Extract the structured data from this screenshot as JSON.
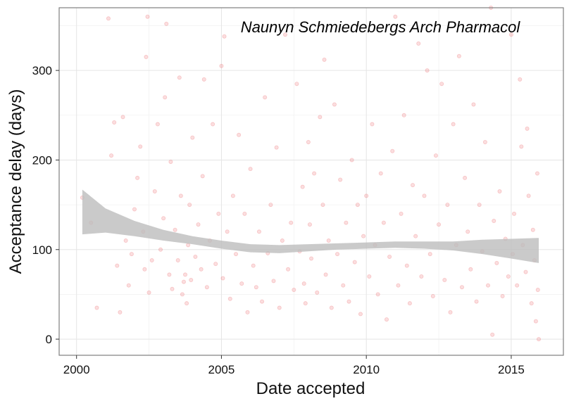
{
  "chart_data": {
    "type": "scatter",
    "title": "",
    "annotation": "Naunyn Schmiedebergs Arch Pharmacol",
    "xlabel": "Date accepted",
    "ylabel": "Acceptance delay (days)",
    "x_ticks": [
      2000,
      2005,
      2010,
      2015
    ],
    "y_ticks": [
      0,
      100,
      200,
      300
    ],
    "xlim": [
      1999.4,
      2016.8
    ],
    "ylim": [
      -18,
      370
    ],
    "grid": true,
    "point_color": "#e8484c",
    "point_alpha": 0.18,
    "smooth_color": "#bdbdbd",
    "smooth_band": {
      "x": [
        2000.2,
        2001.0,
        2002.0,
        2003.0,
        2004.0,
        2005.0,
        2006.0,
        2007.0,
        2008.0,
        2009.0,
        2010.0,
        2011.0,
        2012.0,
        2013.0,
        2014.0,
        2015.0,
        2015.95
      ],
      "lower": [
        117,
        119,
        115,
        110,
        106,
        101,
        97,
        96,
        98,
        100,
        101,
        102,
        101,
        99,
        95,
        90,
        85
      ],
      "upper": [
        167,
        146,
        132,
        122,
        115,
        110,
        106,
        105,
        106,
        107,
        108,
        109,
        109,
        109,
        111,
        112,
        113
      ]
    },
    "points": [
      [
        2000.2,
        158
      ],
      [
        2000.5,
        130
      ],
      [
        2000.7,
        35
      ],
      [
        2001.1,
        358
      ],
      [
        2001.2,
        205
      ],
      [
        2001.3,
        242
      ],
      [
        2001.4,
        82
      ],
      [
        2001.5,
        30
      ],
      [
        2001.6,
        248
      ],
      [
        2001.7,
        110
      ],
      [
        2001.8,
        60
      ],
      [
        2001.9,
        95
      ],
      [
        2002.0,
        145
      ],
      [
        2002.1,
        180
      ],
      [
        2002.2,
        215
      ],
      [
        2002.3,
        120
      ],
      [
        2002.35,
        78
      ],
      [
        2002.4,
        315
      ],
      [
        2002.45,
        360
      ],
      [
        2002.5,
        52
      ],
      [
        2002.6,
        88
      ],
      [
        2002.7,
        165
      ],
      [
        2002.8,
        240
      ],
      [
        2002.9,
        100
      ],
      [
        2003.0,
        135
      ],
      [
        2003.05,
        270
      ],
      [
        2003.1,
        352
      ],
      [
        2003.2,
        72
      ],
      [
        2003.25,
        198
      ],
      [
        2003.3,
        56
      ],
      [
        2003.4,
        122
      ],
      [
        2003.5,
        88
      ],
      [
        2003.55,
        292
      ],
      [
        2003.6,
        160
      ],
      [
        2003.65,
        50
      ],
      [
        2003.7,
        64
      ],
      [
        2003.75,
        72
      ],
      [
        2003.8,
        40
      ],
      [
        2003.85,
        105
      ],
      [
        2003.9,
        150
      ],
      [
        2003.95,
        66
      ],
      [
        2004.0,
        225
      ],
      [
        2004.1,
        92
      ],
      [
        2004.2,
        128
      ],
      [
        2004.3,
        78
      ],
      [
        2004.35,
        182
      ],
      [
        2004.4,
        290
      ],
      [
        2004.5,
        58
      ],
      [
        2004.6,
        110
      ],
      [
        2004.7,
        240
      ],
      [
        2004.8,
        84
      ],
      [
        2004.9,
        140
      ],
      [
        2005.0,
        305
      ],
      [
        2005.05,
        68
      ],
      [
        2005.1,
        338
      ],
      [
        2005.2,
        120
      ],
      [
        2005.3,
        45
      ],
      [
        2005.4,
        160
      ],
      [
        2005.5,
        95
      ],
      [
        2005.6,
        228
      ],
      [
        2005.7,
        62
      ],
      [
        2005.8,
        140
      ],
      [
        2005.9,
        30
      ],
      [
        2006.0,
        190
      ],
      [
        2006.1,
        82
      ],
      [
        2006.2,
        58
      ],
      [
        2006.3,
        120
      ],
      [
        2006.4,
        42
      ],
      [
        2006.5,
        270
      ],
      [
        2006.6,
        96
      ],
      [
        2006.7,
        150
      ],
      [
        2006.8,
        65
      ],
      [
        2006.9,
        214
      ],
      [
        2007.0,
        35
      ],
      [
        2007.1,
        110
      ],
      [
        2007.2,
        340
      ],
      [
        2007.3,
        78
      ],
      [
        2007.4,
        130
      ],
      [
        2007.5,
        55
      ],
      [
        2007.6,
        285
      ],
      [
        2007.7,
        98
      ],
      [
        2007.8,
        170
      ],
      [
        2007.85,
        62
      ],
      [
        2007.9,
        40
      ],
      [
        2008.0,
        220
      ],
      [
        2008.05,
        128
      ],
      [
        2008.1,
        90
      ],
      [
        2008.2,
        185
      ],
      [
        2008.3,
        52
      ],
      [
        2008.4,
        248
      ],
      [
        2008.5,
        150
      ],
      [
        2008.55,
        312
      ],
      [
        2008.6,
        72
      ],
      [
        2008.7,
        110
      ],
      [
        2008.8,
        35
      ],
      [
        2008.9,
        262
      ],
      [
        2009.0,
        95
      ],
      [
        2009.1,
        178
      ],
      [
        2009.2,
        60
      ],
      [
        2009.3,
        130
      ],
      [
        2009.4,
        42
      ],
      [
        2009.5,
        200
      ],
      [
        2009.6,
        86
      ],
      [
        2009.7,
        150
      ],
      [
        2009.8,
        28
      ],
      [
        2009.9,
        115
      ],
      [
        2010.0,
        160
      ],
      [
        2010.1,
        70
      ],
      [
        2010.2,
        240
      ],
      [
        2010.3,
        105
      ],
      [
        2010.4,
        50
      ],
      [
        2010.5,
        185
      ],
      [
        2010.6,
        130
      ],
      [
        2010.7,
        22
      ],
      [
        2010.8,
        92
      ],
      [
        2010.9,
        210
      ],
      [
        2011.0,
        360
      ],
      [
        2011.1,
        60
      ],
      [
        2011.2,
        140
      ],
      [
        2011.3,
        250
      ],
      [
        2011.4,
        82
      ],
      [
        2011.5,
        40
      ],
      [
        2011.6,
        172
      ],
      [
        2011.7,
        115
      ],
      [
        2011.8,
        330
      ],
      [
        2011.9,
        70
      ],
      [
        2012.0,
        160
      ],
      [
        2012.1,
        300
      ],
      [
        2012.2,
        95
      ],
      [
        2012.3,
        48
      ],
      [
        2012.4,
        205
      ],
      [
        2012.5,
        128
      ],
      [
        2012.6,
        285
      ],
      [
        2012.7,
        66
      ],
      [
        2012.8,
        150
      ],
      [
        2012.9,
        30
      ],
      [
        2013.0,
        240
      ],
      [
        2013.1,
        105
      ],
      [
        2013.2,
        316
      ],
      [
        2013.3,
        58
      ],
      [
        2013.4,
        180
      ],
      [
        2013.5,
        120
      ],
      [
        2013.6,
        78
      ],
      [
        2013.7,
        262
      ],
      [
        2013.8,
        42
      ],
      [
        2013.9,
        150
      ],
      [
        2014.0,
        98
      ],
      [
        2014.1,
        220
      ],
      [
        2014.2,
        60
      ],
      [
        2014.3,
        370
      ],
      [
        2014.35,
        5
      ],
      [
        2014.4,
        132
      ],
      [
        2014.5,
        85
      ],
      [
        2014.6,
        165
      ],
      [
        2014.7,
        48
      ],
      [
        2014.8,
        112
      ],
      [
        2014.9,
        70
      ],
      [
        2015.0,
        340
      ],
      [
        2015.05,
        95
      ],
      [
        2015.1,
        140
      ],
      [
        2015.2,
        60
      ],
      [
        2015.3,
        290
      ],
      [
        2015.35,
        215
      ],
      [
        2015.4,
        105
      ],
      [
        2015.5,
        75
      ],
      [
        2015.6,
        160
      ],
      [
        2015.7,
        40
      ],
      [
        2015.75,
        122
      ],
      [
        2015.8,
        88
      ],
      [
        2015.9,
        185
      ],
      [
        2015.95,
        0
      ],
      [
        2015.92,
        55
      ],
      [
        2015.85,
        20
      ],
      [
        2015.55,
        235
      ]
    ]
  }
}
